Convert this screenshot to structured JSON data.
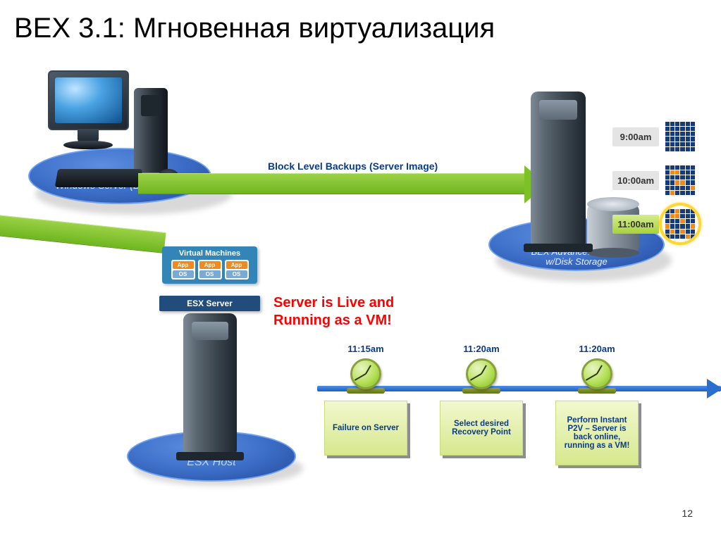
{
  "slide": {
    "title": "BEX 3.1:  Мгновенная виртуализация",
    "page_number": "12",
    "background_color": "#ffffff",
    "title_fontsize": 40,
    "title_color": "#000000"
  },
  "workstation": {
    "platform_label": "Windows Server (BU Source)",
    "platform_color": "#3d6fc8",
    "label_color": "#e8f0ff",
    "label_fontsize": 14,
    "label_fontstyle": "italic"
  },
  "bex_server": {
    "platform_label_line1": "BEX Advanced Server",
    "platform_label_line2": "w/Disk Storage",
    "platform_color": "#3d6fc8",
    "label_color": "#e8f0ff",
    "label_fontsize": 13,
    "label_fontstyle": "italic"
  },
  "esx_host": {
    "platform_label": "ESX Host",
    "vm_panel_title": "Virtual Machines",
    "vm_panel_bg": "#3485b7",
    "vm_app_label": "App",
    "vm_os_label": "OS",
    "vm_app_bg": "#f08a1f",
    "vm_os_bg": "#7aa9d4",
    "esx_bar_label": "ESX Server",
    "esx_bar_bg": "#214c7c",
    "platform_color": "#3d6fc8"
  },
  "arrows": {
    "right_label": "Block Level Backups (Server Image)",
    "right_label_color": "#0a3a8a",
    "right_label_fontsize": 14,
    "arrow_color": "#7cc227",
    "arrow_gradient_top": "#9bd146",
    "arrow_gradient_bottom": "#6fb61f"
  },
  "snapshots": {
    "rows": [
      {
        "time": "9:00am",
        "style": "grey",
        "highlighted": false,
        "grid_pattern": "full"
      },
      {
        "time": "10:00am",
        "style": "grey",
        "highlighted": false,
        "grid_pattern": "partial1"
      },
      {
        "time": "11:00am",
        "style": "green",
        "highlighted": true,
        "grid_pattern": "partial2"
      }
    ],
    "grid_color_primary": "#163a7a",
    "grid_color_changed": "#f08a1f",
    "highlight_ring_color": "#ffd633",
    "grey_bg": "#e4e4e4",
    "green_bg_top": "#d4ed8f",
    "green_bg_bottom": "#a7d23a",
    "label_fontsize": 13
  },
  "live_text": {
    "line1": "Server is Live and",
    "line2": "Running as a VM!",
    "color": "#ff0000",
    "fontsize": 20,
    "fontweight": "bold"
  },
  "timeline": {
    "line_color_top": "#4f8fe7",
    "line_color_bottom": "#1c5ec3",
    "time_label_color": "#0a3a8a",
    "time_label_fontsize": 13,
    "card_bg_top": "#f2f8cf",
    "card_bg_bottom": "#d6e88e",
    "card_text_color": "#0a3a8a",
    "card_shadow_color": "#8d8d8d",
    "card_fontsize": 11.5,
    "clock_face_color": "#b6e05a",
    "clock_border_color": "#8aa03a",
    "steps": [
      {
        "time": "11:15am",
        "card": "Failure on Server"
      },
      {
        "time": "11:20am",
        "card": "Select desired Recovery Point"
      },
      {
        "time": "11:20am",
        "card": "Perform Instant P2V – Server is back online, running as a VM!"
      }
    ]
  }
}
